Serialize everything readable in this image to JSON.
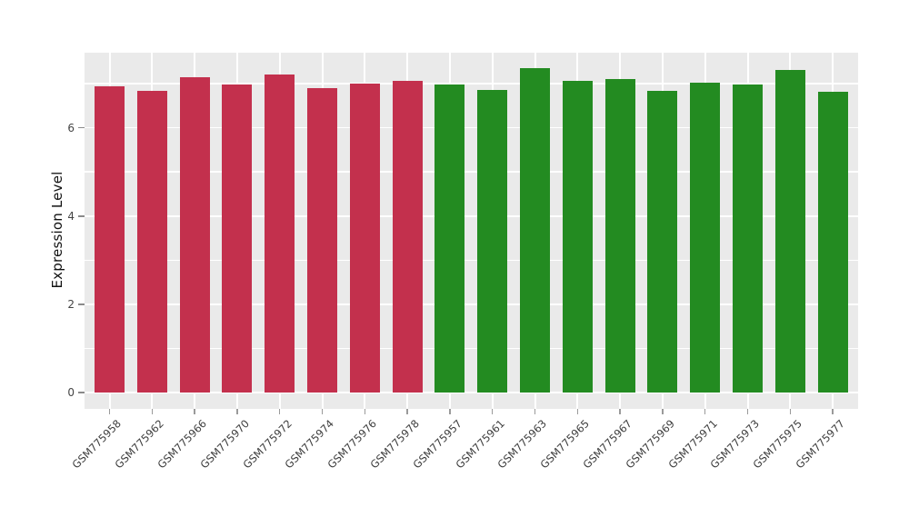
{
  "figure": {
    "background": "#ffffff",
    "panel_background": "#eaeaea",
    "grid_color": "#ffffff",
    "tick_color": "#8a8a8a",
    "tick_label_color": "#444444",
    "axis_label_color": "#111111"
  },
  "chart_data": {
    "type": "bar",
    "title": "",
    "xlabel": "",
    "ylabel": "Expression Level",
    "categories": [
      "GSM775958",
      "GSM775962",
      "GSM775966",
      "GSM775970",
      "GSM775972",
      "GSM775974",
      "GSM775976",
      "GSM775978",
      "GSM775957",
      "GSM775961",
      "GSM775963",
      "GSM775965",
      "GSM775967",
      "GSM775969",
      "GSM775971",
      "GSM775973",
      "GSM775975",
      "GSM775977"
    ],
    "values": [
      6.94,
      6.84,
      7.15,
      6.98,
      7.2,
      6.9,
      6.99,
      7.07,
      6.97,
      6.86,
      7.34,
      7.06,
      7.1,
      6.84,
      7.03,
      6.98,
      7.31,
      6.82
    ],
    "bar_color_keys": [
      "crimson",
      "crimson",
      "crimson",
      "crimson",
      "crimson",
      "crimson",
      "crimson",
      "crimson",
      "green",
      "green",
      "green",
      "green",
      "green",
      "green",
      "green",
      "green",
      "green",
      "green"
    ],
    "palette": {
      "crimson": "#c3304d",
      "green": "#238b21"
    },
    "ylim": [
      -0.37,
      7.7
    ],
    "yticks": [
      0,
      2,
      4,
      6
    ],
    "ytick_labels": [
      "0",
      "2",
      "4",
      "6"
    ],
    "ygrid_values": [
      0,
      1,
      2,
      3,
      4,
      5,
      6,
      7
    ],
    "grid": "on",
    "legend": "none",
    "xtick_rotation_deg": 45
  }
}
